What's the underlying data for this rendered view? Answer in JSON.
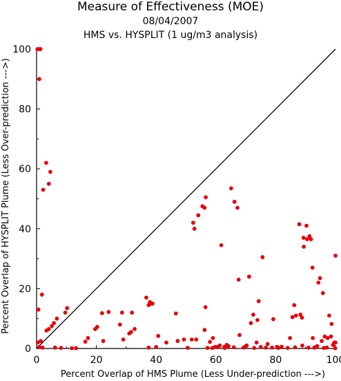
{
  "header": {
    "title": "Measure of Effectiveness (MOE)",
    "date": "08/04/2007",
    "subtitle": "HMS vs. HYSPLIT  (1 ug/m3 analysis)"
  },
  "colors": {
    "points": "#e8000b",
    "axes": "#000000",
    "diagonal": "#000000"
  },
  "chart_data": {
    "type": "scatter",
    "title": "Measure of Effectiveness (MOE)",
    "xlabel": "Percent Overlap of HMS Plume (Less Under-prediction --->)",
    "ylabel": "Percent Overlap of HYSPLIT Plume (Less Over-prediction --->)",
    "xlim": [
      0,
      100
    ],
    "ylim": [
      0,
      100
    ],
    "xticks": [
      0,
      20,
      40,
      60,
      80,
      100
    ],
    "yticks": [
      0,
      20,
      40,
      60,
      80,
      100
    ],
    "grid": false,
    "reference_line": "y = x diagonal",
    "series": [
      {
        "points": [
          [
            0.3,
            100
          ],
          [
            0.8,
            100
          ],
          [
            1.3,
            100
          ],
          [
            0.9,
            90
          ],
          [
            0.6,
            13
          ],
          [
            0.4,
            2
          ],
          [
            0.9,
            0.5
          ],
          [
            1.4,
            2.5
          ],
          [
            1.8,
            18
          ],
          [
            2.2,
            53
          ],
          [
            3.2,
            62
          ],
          [
            4.1,
            55
          ],
          [
            4.6,
            59
          ],
          [
            3.3,
            6
          ],
          [
            4.1,
            6.5
          ],
          [
            5.1,
            7.5
          ],
          [
            5.8,
            8.5
          ],
          [
            6.8,
            10
          ],
          [
            9.6,
            12
          ],
          [
            10.2,
            13.5
          ],
          [
            2.0,
            0.3
          ],
          [
            6.2,
            0.3
          ],
          [
            8.2,
            0.2
          ],
          [
            11.8,
            0.1
          ],
          [
            13.2,
            0.1
          ],
          [
            16.3,
            2.3
          ],
          [
            17.2,
            3.5
          ],
          [
            19.6,
            6.5
          ],
          [
            20.3,
            7.2
          ],
          [
            21.9,
            11.8
          ],
          [
            22.3,
            2.5
          ],
          [
            24.1,
            12.2
          ],
          [
            27.9,
            8
          ],
          [
            28.6,
            12
          ],
          [
            29.0,
            3
          ],
          [
            31.0,
            5
          ],
          [
            31.9,
            12
          ],
          [
            31.6,
            5.5
          ],
          [
            32.8,
            6.5
          ],
          [
            36.7,
            17
          ],
          [
            37.5,
            14.5
          ],
          [
            37.9,
            15.5
          ],
          [
            38.4,
            15
          ],
          [
            38.8,
            15
          ],
          [
            37.5,
            0.3
          ],
          [
            40.0,
            0.5
          ],
          [
            40.7,
            4.2
          ],
          [
            43.4,
            2
          ],
          [
            46.6,
            11.7
          ],
          [
            47.2,
            2.5
          ],
          [
            49.3,
            3
          ],
          [
            50.6,
            0.2
          ],
          [
            51.9,
            3
          ],
          [
            52.4,
            42
          ],
          [
            52.8,
            40
          ],
          [
            53.4,
            3
          ],
          [
            54.1,
            44.5
          ],
          [
            55.5,
            47.5
          ],
          [
            56.2,
            47
          ],
          [
            56.6,
            50.5
          ],
          [
            56.5,
            13.8
          ],
          [
            56.2,
            6.2
          ],
          [
            57.2,
            0.2
          ],
          [
            58.0,
            2.2
          ],
          [
            58.8,
            0.2
          ],
          [
            59.0,
            3.5
          ],
          [
            59.7,
            0.5
          ],
          [
            60.6,
            0.5
          ],
          [
            61.3,
            1
          ],
          [
            61.8,
            34.5
          ],
          [
            62.8,
            0.5
          ],
          [
            63.6,
            1.2
          ],
          [
            64.2,
            0.8
          ],
          [
            65.1,
            53.5
          ],
          [
            66.2,
            49
          ],
          [
            67.2,
            47
          ],
          [
            67.6,
            23
          ],
          [
            67.9,
            4.5
          ],
          [
            69.2,
            0.3
          ],
          [
            70.3,
            1
          ],
          [
            71.1,
            24
          ],
          [
            71.7,
            8.5
          ],
          [
            72.5,
            11.3
          ],
          [
            73.6,
            2
          ],
          [
            73.9,
            9.5
          ],
          [
            74.3,
            15.8
          ],
          [
            75.6,
            30.5
          ],
          [
            76.7,
            0.3
          ],
          [
            77.3,
            1.5
          ],
          [
            79.2,
            9.8
          ],
          [
            80.5,
            0.5
          ],
          [
            80.9,
            0.2
          ],
          [
            84.8,
            3.5
          ],
          [
            85.6,
            10.5
          ],
          [
            86.2,
            14.5
          ],
          [
            86.8,
            11
          ],
          [
            87.9,
            41.5
          ],
          [
            88.3,
            11.3
          ],
          [
            88.8,
            10.3
          ],
          [
            89.3,
            37
          ],
          [
            89.4,
            34
          ],
          [
            90.3,
            41
          ],
          [
            90.5,
            36.5
          ],
          [
            91.3,
            37.5
          ],
          [
            91.8,
            36.5
          ],
          [
            92.3,
            27
          ],
          [
            92.4,
            3.5
          ],
          [
            92.9,
            0.3
          ],
          [
            93.9,
            0.8
          ],
          [
            94.3,
            22
          ],
          [
            94.8,
            23.5
          ],
          [
            95.4,
            2.5
          ],
          [
            95.8,
            18.5
          ],
          [
            96.4,
            4
          ],
          [
            97.1,
            0.3
          ],
          [
            97.4,
            3.5
          ],
          [
            97.9,
            11
          ],
          [
            98.5,
            4
          ],
          [
            98.7,
            8.2
          ],
          [
            99.2,
            1.2
          ],
          [
            99.6,
            2
          ],
          [
            100.0,
            31
          ],
          [
            100.0,
            2
          ],
          [
            99.9,
            0.1
          ],
          [
            96.1,
            0.2
          ],
          [
            93.5,
            0.5
          ],
          [
            91.0,
            0.3
          ],
          [
            88.9,
            1.0
          ],
          [
            86.5,
            0.4
          ],
          [
            84.0,
            0.2
          ],
          [
            82.0,
            0.6
          ],
          [
            78.8,
            0.3
          ],
          [
            75.0,
            0.5
          ],
          [
            72.8,
            0.2
          ],
          [
            70.0,
            0.8
          ],
          [
            66.0,
            0.4
          ],
          [
            63.0,
            0.2
          ]
        ]
      }
    ]
  }
}
